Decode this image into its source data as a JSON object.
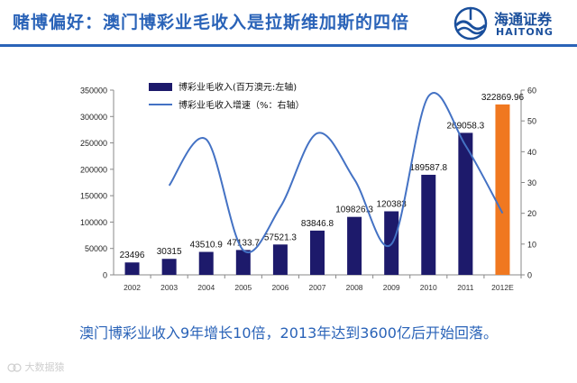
{
  "header": {
    "title": "赌博偏好：澳门博彩业毛收入是拉斯维加斯的四倍",
    "logo_cn": "海通证券",
    "logo_en": "HAITONG"
  },
  "caption": "澳门博彩业收入9年增长10倍，2013年达到3600亿后开始回落。",
  "watermark": "大数据猿",
  "colors": {
    "title": "#2a63b8",
    "bar": "#1d1a6b",
    "bar_highlight": "#f07820",
    "line": "#4472c4"
  },
  "chart_data": {
    "type": "bar",
    "categories": [
      "2002",
      "2003",
      "2004",
      "2005",
      "2006",
      "2007",
      "2008",
      "2009",
      "2010",
      "2011",
      "2012E"
    ],
    "series": [
      {
        "name": "博彩业毛收入(百万澳元:左轴)",
        "kind": "bar",
        "axis": "left",
        "values": [
          23496,
          30315,
          43510.9,
          47133.7,
          57521.3,
          83846.8,
          109826.3,
          120383,
          189587.8,
          269058.3,
          322869.96
        ],
        "labels": [
          "23496",
          "30315",
          "43510.9",
          "47133.7",
          "57521.3",
          "83846.8",
          "109826.3",
          "120383",
          "189587.8",
          "269058.3",
          "322869.96"
        ],
        "highlight_last": true
      },
      {
        "name": "博彩业毛收入增速（%：右轴）",
        "kind": "line",
        "axis": "right",
        "values": [
          null,
          29,
          44,
          8,
          22,
          46,
          31,
          10,
          58,
          42,
          20
        ]
      }
    ],
    "y_left": {
      "min": 0,
      "max": 350000,
      "ticks": [
        0,
        50000,
        100000,
        150000,
        200000,
        250000,
        300000,
        350000
      ]
    },
    "y_right": {
      "min": 0,
      "max": 60,
      "ticks": [
        0,
        10,
        20,
        30,
        40,
        50,
        60
      ]
    },
    "legend": "top-left",
    "grid": false
  }
}
